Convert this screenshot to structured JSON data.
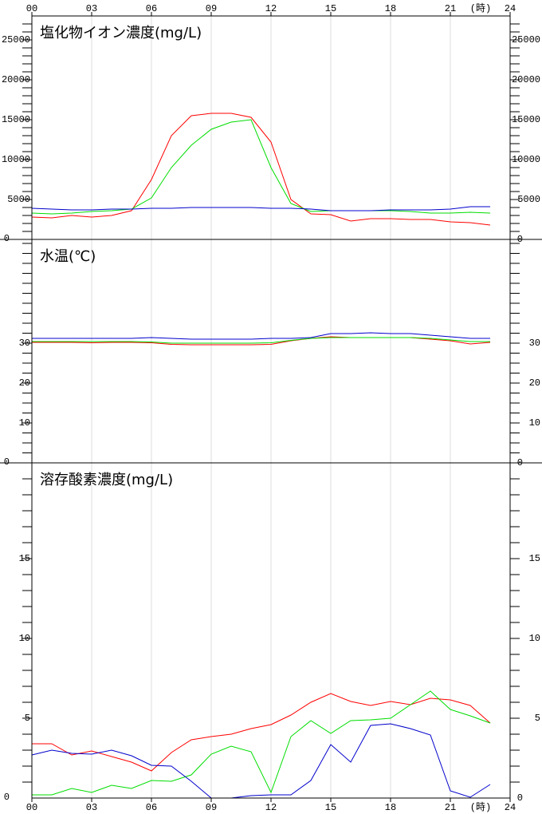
{
  "chart_data": [
    {
      "type": "line",
      "title": "塩化物イオン濃度(mg/L)",
      "xlabel": "(時)",
      "x": [
        0,
        1,
        2,
        3,
        4,
        5,
        6,
        7,
        8,
        9,
        10,
        11,
        12,
        13,
        14,
        15,
        16,
        17,
        18,
        19,
        20,
        21,
        22,
        23
      ],
      "xlim": [
        0,
        24
      ],
      "xticks": [
        {
          "value": 0,
          "label": "00"
        },
        {
          "value": 3,
          "label": "03"
        },
        {
          "value": 6,
          "label": "06"
        },
        {
          "value": 9,
          "label": "09"
        },
        12,
        15,
        18,
        21,
        24
      ],
      "ylim": [
        0,
        28000
      ],
      "yticks": [
        0,
        5000,
        10000,
        15000,
        20000,
        25000
      ],
      "minor_ytick_step": 1000,
      "grid": true,
      "series": [
        {
          "color": "#ff0000",
          "values": [
            2800,
            2700,
            3000,
            2800,
            3000,
            3600,
            7500,
            13000,
            15500,
            15800,
            15800,
            15300,
            12200,
            5000,
            3200,
            3100,
            2300,
            2600,
            2600,
            2500,
            2500,
            2200,
            2100,
            1800
          ]
        },
        {
          "color": "#00dd00",
          "values": [
            3300,
            3200,
            3300,
            3500,
            3600,
            3800,
            5200,
            9000,
            11800,
            13800,
            14700,
            15000,
            9000,
            4500,
            3500,
            3600,
            3600,
            3600,
            3600,
            3500,
            3300,
            3300,
            3400,
            3300
          ]
        },
        {
          "color": "#0000cc",
          "values": [
            3900,
            3800,
            3700,
            3700,
            3800,
            3800,
            3900,
            3900,
            4000,
            4000,
            4000,
            4000,
            3900,
            3900,
            3800,
            3600,
            3600,
            3600,
            3700,
            3700,
            3700,
            3800,
            4100,
            4100
          ]
        }
      ]
    },
    {
      "type": "line",
      "title": "水温(℃)",
      "x": [
        0,
        1,
        2,
        3,
        4,
        5,
        6,
        7,
        8,
        9,
        10,
        11,
        12,
        13,
        14,
        15,
        16,
        17,
        18,
        19,
        20,
        21,
        22,
        23
      ],
      "xlim": [
        0,
        24
      ],
      "xticks": [
        {
          "value": 0,
          "label": "00"
        },
        {
          "value": 3,
          "label": "03"
        },
        {
          "value": 6,
          "label": "06"
        },
        {
          "value": 9,
          "label": "09"
        },
        12,
        15,
        18,
        21,
        24
      ],
      "ylim": [
        0,
        56
      ],
      "yticks": [
        0,
        10,
        20,
        30
      ],
      "minor_ytick_step": 2.5,
      "grid": true,
      "series": [
        {
          "color": "#ff0000",
          "values": [
            30.2,
            30.2,
            30.2,
            30.1,
            30.2,
            30.2,
            30.1,
            29.7,
            29.6,
            29.6,
            29.6,
            29.6,
            29.7,
            30.6,
            31.2,
            31.6,
            31.4,
            31.4,
            31.4,
            31.4,
            31,
            30.6,
            29.8,
            30.2
          ]
        },
        {
          "color": "#00dd00",
          "values": [
            30.4,
            30.4,
            30.4,
            30.4,
            30.4,
            30.4,
            30.3,
            30,
            30,
            30,
            30,
            30,
            30.1,
            30.7,
            31.2,
            31.4,
            31.4,
            31.4,
            31.4,
            31.4,
            31.2,
            30.8,
            30.4,
            30.4
          ]
        },
        {
          "color": "#0000cc",
          "values": [
            31.2,
            31.2,
            31.2,
            31.2,
            31.2,
            31.2,
            31.4,
            31.2,
            31,
            31,
            31,
            31,
            31.2,
            31.2,
            31.4,
            32.4,
            32.4,
            32.6,
            32.4,
            32.4,
            32,
            31.6,
            31.2,
            31.2
          ]
        }
      ]
    },
    {
      "type": "line",
      "title": "溶存酸素濃度(mg/L)",
      "xlabel": "(時)",
      "x": [
        0,
        1,
        2,
        3,
        4,
        5,
        6,
        7,
        8,
        9,
        10,
        11,
        12,
        13,
        14,
        15,
        16,
        17,
        18,
        19,
        20,
        21,
        22,
        23
      ],
      "xlim": [
        0,
        24
      ],
      "xticks": [
        {
          "value": 0,
          "label": "00"
        },
        {
          "value": 3,
          "label": "03"
        },
        {
          "value": 6,
          "label": "06"
        },
        {
          "value": 9,
          "label": "09"
        },
        12,
        15,
        18,
        21,
        24
      ],
      "ylim": [
        0,
        21
      ],
      "yticks": [
        0,
        5,
        10,
        15
      ],
      "minor_ytick_step": 1,
      "grid": true,
      "series": [
        {
          "color": "#ff0000",
          "values": [
            3.4,
            3.4,
            2.7,
            2.95,
            2.6,
            2.25,
            1.7,
            2.85,
            3.65,
            3.85,
            4,
            4.35,
            4.6,
            5.2,
            6,
            6.55,
            6.05,
            5.8,
            6.05,
            5.85,
            6.25,
            6.15,
            5.8,
            4.7
          ]
        },
        {
          "color": "#00dd00",
          "values": [
            0.2,
            0.2,
            0.6,
            0.35,
            0.8,
            0.6,
            1.1,
            1.05,
            1.45,
            2.75,
            3.25,
            2.9,
            0.35,
            3.85,
            4.85,
            4.05,
            4.85,
            4.9,
            5,
            5.85,
            6.7,
            5.55,
            5.15,
            4.7
          ]
        },
        {
          "color": "#0000cc",
          "values": [
            2.7,
            3,
            2.8,
            2.75,
            3,
            2.65,
            2.05,
            2,
            1.05,
            0,
            0,
            0.15,
            0.2,
            0.2,
            1.1,
            3.35,
            2.25,
            4.55,
            4.65,
            4.35,
            3.95,
            0.45,
            0.05,
            0.85
          ]
        }
      ]
    }
  ]
}
